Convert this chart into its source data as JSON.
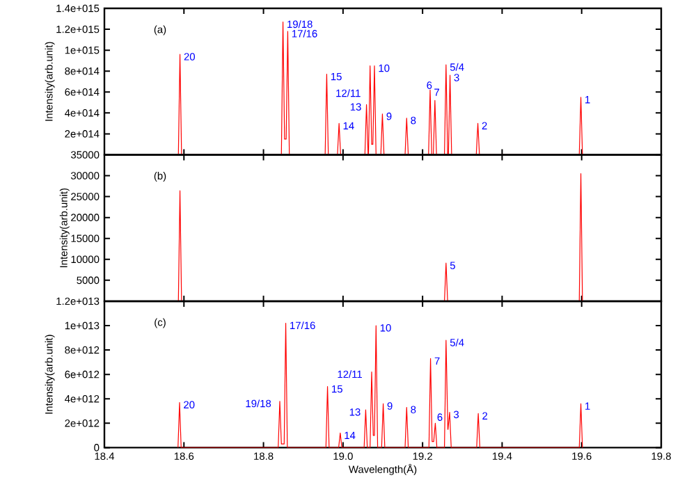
{
  "chart_data": [
    {
      "type": "line",
      "ylabel": "Intensity(arb.unit)",
      "tick_labels": "y",
      "marker": "none",
      "line_style": "solid",
      "xlim": [
        18.4,
        19.8
      ],
      "ylim": [
        0,
        1400000000000000.0
      ],
      "yticks": [
        {
          "value": 0,
          "label": null
        },
        {
          "value": 200000000000000.0,
          "label": "2e+014"
        },
        {
          "value": 400000000000000.0,
          "label": "4e+014"
        },
        {
          "value": 600000000000000.0,
          "label": "6e+014"
        },
        {
          "value": 800000000000000.0,
          "label": "8e+014"
        },
        {
          "value": 1000000000000000.0,
          "label": "1e+015"
        },
        {
          "value": 1200000000000000.0,
          "label": "1.2e+015"
        },
        {
          "value": 1400000000000000.0,
          "label": "1.4e+015"
        }
      ],
      "series": [
        {
          "color": "#ff0000",
          "x": [
            18.586,
            18.59,
            18.594,
            18.845,
            18.849,
            18.853,
            18.857,
            18.861,
            18.865,
            18.955,
            18.959,
            18.963,
            18.986,
            18.99,
            18.994,
            19.055,
            19.059,
            19.063,
            19.064,
            19.068,
            19.072,
            19.075,
            19.079,
            19.083,
            19.095,
            19.099,
            19.103,
            19.156,
            19.16,
            19.164,
            19.215,
            19.219,
            19.223,
            19.227,
            19.231,
            19.235,
            19.255,
            19.259,
            19.263,
            19.265,
            19.269,
            19.273,
            19.335,
            19.339,
            19.343,
            19.594,
            19.598,
            19.602
          ],
          "values": [
            0,
            960000000000000.0,
            0,
            0,
            1270000000000000.0,
            150000000000000.0,
            150000000000000.0,
            1180000000000000.0,
            0,
            0,
            770000000000000.0,
            0,
            0,
            300000000000000.0,
            0,
            0,
            480000000000000.0,
            0,
            0,
            850000000000000.0,
            100000000000000.0,
            100000000000000.0,
            850000000000000.0,
            0,
            0,
            390000000000000.0,
            0,
            0,
            350000000000000.0,
            0,
            0,
            620000000000000.0,
            0,
            0,
            520000000000000.0,
            0,
            0,
            860000000000000.0,
            0,
            0,
            760000000000000.0,
            0,
            0,
            300000000000000.0,
            0,
            0,
            550000000000000.0,
            0
          ]
        }
      ],
      "annotations": [
        "(a)",
        {
          "text": "20",
          "x": 18.59,
          "y": 960000000000000.0
        },
        {
          "text": "19/18",
          "x": 18.849,
          "y": 1270000000000000.0
        },
        {
          "text": "17/16",
          "x": 18.861,
          "y": 1180000000000000.0
        },
        {
          "text": "15",
          "x": 18.959,
          "y": 770000000000000.0
        },
        {
          "text": "14",
          "x": 18.99,
          "y": 300000000000000.0
        },
        {
          "text": "13",
          "x": 19.059,
          "y": 480000000000000.0
        },
        {
          "text": "12/11",
          "x": 19.068,
          "y": 850000000000000.0
        },
        {
          "text": "10",
          "x": 19.079,
          "y": 850000000000000.0
        },
        {
          "text": "9",
          "x": 19.099,
          "y": 390000000000000.0
        },
        {
          "text": "8",
          "x": 19.16,
          "y": 350000000000000.0
        },
        {
          "text": "7",
          "x": 19.219,
          "y": 620000000000000.0
        },
        {
          "text": "6",
          "x": 19.231,
          "y": 520000000000000.0
        },
        {
          "text": "5/4",
          "x": 19.259,
          "y": 860000000000000.0
        },
        {
          "text": "3",
          "x": 19.269,
          "y": 760000000000000.0
        },
        {
          "text": "2",
          "x": 19.339,
          "y": 300000000000000.0
        },
        {
          "text": "1",
          "x": 19.598,
          "y": 550000000000000.0
        }
      ]
    },
    {
      "type": "line",
      "ylabel": "Intensity(arb.unit)",
      "tick_labels": "y",
      "marker": "none",
      "line_style": "solid",
      "xlim": [
        18.4,
        19.8
      ],
      "ylim": [
        0,
        35000
      ],
      "yticks": [
        {
          "value": 0,
          "label": null
        },
        5000,
        10000,
        15000,
        20000,
        25000,
        30000,
        35000
      ],
      "series": [
        {
          "color": "#ff0000",
          "x": [
            18.586,
            18.59,
            18.594,
            19.255,
            19.259,
            19.263,
            19.594,
            19.598,
            19.602
          ],
          "values": [
            0,
            26400,
            0,
            0,
            9100,
            0,
            0,
            30500,
            0
          ]
        }
      ],
      "annotations": [
        "(b)",
        {
          "text": "5",
          "x": 19.259,
          "y": 9100
        }
      ]
    },
    {
      "type": "line",
      "ylabel": "Intensity(arb.unit)",
      "xlabel": "Wavelength(Å)",
      "marker": "none",
      "line_style": "solid",
      "xlim": [
        18.4,
        19.8
      ],
      "ylim": [
        0,
        12000000000000.0
      ],
      "xticks": [
        18.4,
        18.6,
        18.8,
        {
          "value": 19,
          "label": "19.0"
        },
        19.2,
        19.4,
        19.6,
        19.8
      ],
      "yticks": [
        0,
        {
          "value": 2000000000000.0,
          "label": "2e+012"
        },
        {
          "value": 4000000000000.0,
          "label": "4e+012"
        },
        {
          "value": 6000000000000.0,
          "label": "6e+012"
        },
        {
          "value": 8000000000000.0,
          "label": "8e+012"
        },
        {
          "value": 10000000000000.0,
          "label": "1e+013"
        },
        {
          "value": 12000000000000.0,
          "label": "1.2e+013"
        }
      ],
      "series": [
        {
          "color": "#ff0000",
          "x": [
            18.585,
            18.589,
            18.593,
            18.837,
            18.841,
            18.845,
            18.852,
            18.856,
            18.86,
            18.957,
            18.961,
            18.965,
            18.989,
            18.993,
            18.997,
            19.053,
            19.057,
            19.061,
            19.068,
            19.072,
            19.076,
            19.079,
            19.083,
            19.087,
            19.097,
            19.101,
            19.105,
            19.156,
            19.16,
            19.164,
            19.216,
            19.22,
            19.224,
            19.228,
            19.232,
            19.236,
            19.255,
            19.259,
            19.2635,
            19.264,
            19.268,
            19.272,
            19.336,
            19.34,
            19.344,
            19.594,
            19.598,
            19.602
          ],
          "values": [
            0,
            3700000000000.0,
            0,
            0,
            3800000000000.0,
            300000000000.0,
            300000000000.0,
            10200000000000.0,
            0,
            0,
            5000000000000.0,
            0,
            0,
            1200000000000.0,
            0,
            0,
            3100000000000.0,
            0,
            0,
            6200000000000.0,
            1000000000000.0,
            1000000000000.0,
            10000000000000.0,
            0,
            0,
            3600000000000.0,
            0,
            0,
            3300000000000.0,
            0,
            0,
            7300000000000.0,
            500000000000.0,
            500000000000.0,
            2000000000000.0,
            0,
            0,
            8800000000000.0,
            1500000000000.0,
            1500000000000.0,
            2900000000000.0,
            0,
            0,
            2800000000000.0,
            0,
            0,
            3600000000000.0,
            0
          ]
        }
      ],
      "annotations": [
        "(c)",
        {
          "text": "20",
          "x": 18.589,
          "y": 3700000000000.0
        },
        {
          "text": "19/18",
          "x": 18.841,
          "y": 3800000000000.0
        },
        {
          "text": "17/16",
          "x": 18.856,
          "y": 10200000000000.0
        },
        {
          "text": "15",
          "x": 18.961,
          "y": 5000000000000.0
        },
        {
          "text": "14",
          "x": 18.993,
          "y": 1200000000000.0
        },
        {
          "text": "13",
          "x": 19.057,
          "y": 3100000000000.0
        },
        {
          "text": "12/11",
          "x": 19.072,
          "y": 6200000000000.0
        },
        {
          "text": "10",
          "x": 19.083,
          "y": 10000000000000.0
        },
        {
          "text": "9",
          "x": 19.101,
          "y": 3600000000000.0
        },
        {
          "text": "8",
          "x": 19.16,
          "y": 3300000000000.0
        },
        {
          "text": "7",
          "x": 19.22,
          "y": 7300000000000.0
        },
        {
          "text": "6",
          "x": 19.232,
          "y": 2000000000000.0
        },
        {
          "text": "5/4",
          "x": 19.259,
          "y": 8800000000000.0
        },
        {
          "text": "3",
          "x": 19.268,
          "y": 2900000000000.0
        },
        {
          "text": "2",
          "x": 19.34,
          "y": 2800000000000.0
        },
        {
          "text": "1",
          "x": 19.598,
          "y": 3600000000000.0
        }
      ]
    }
  ]
}
